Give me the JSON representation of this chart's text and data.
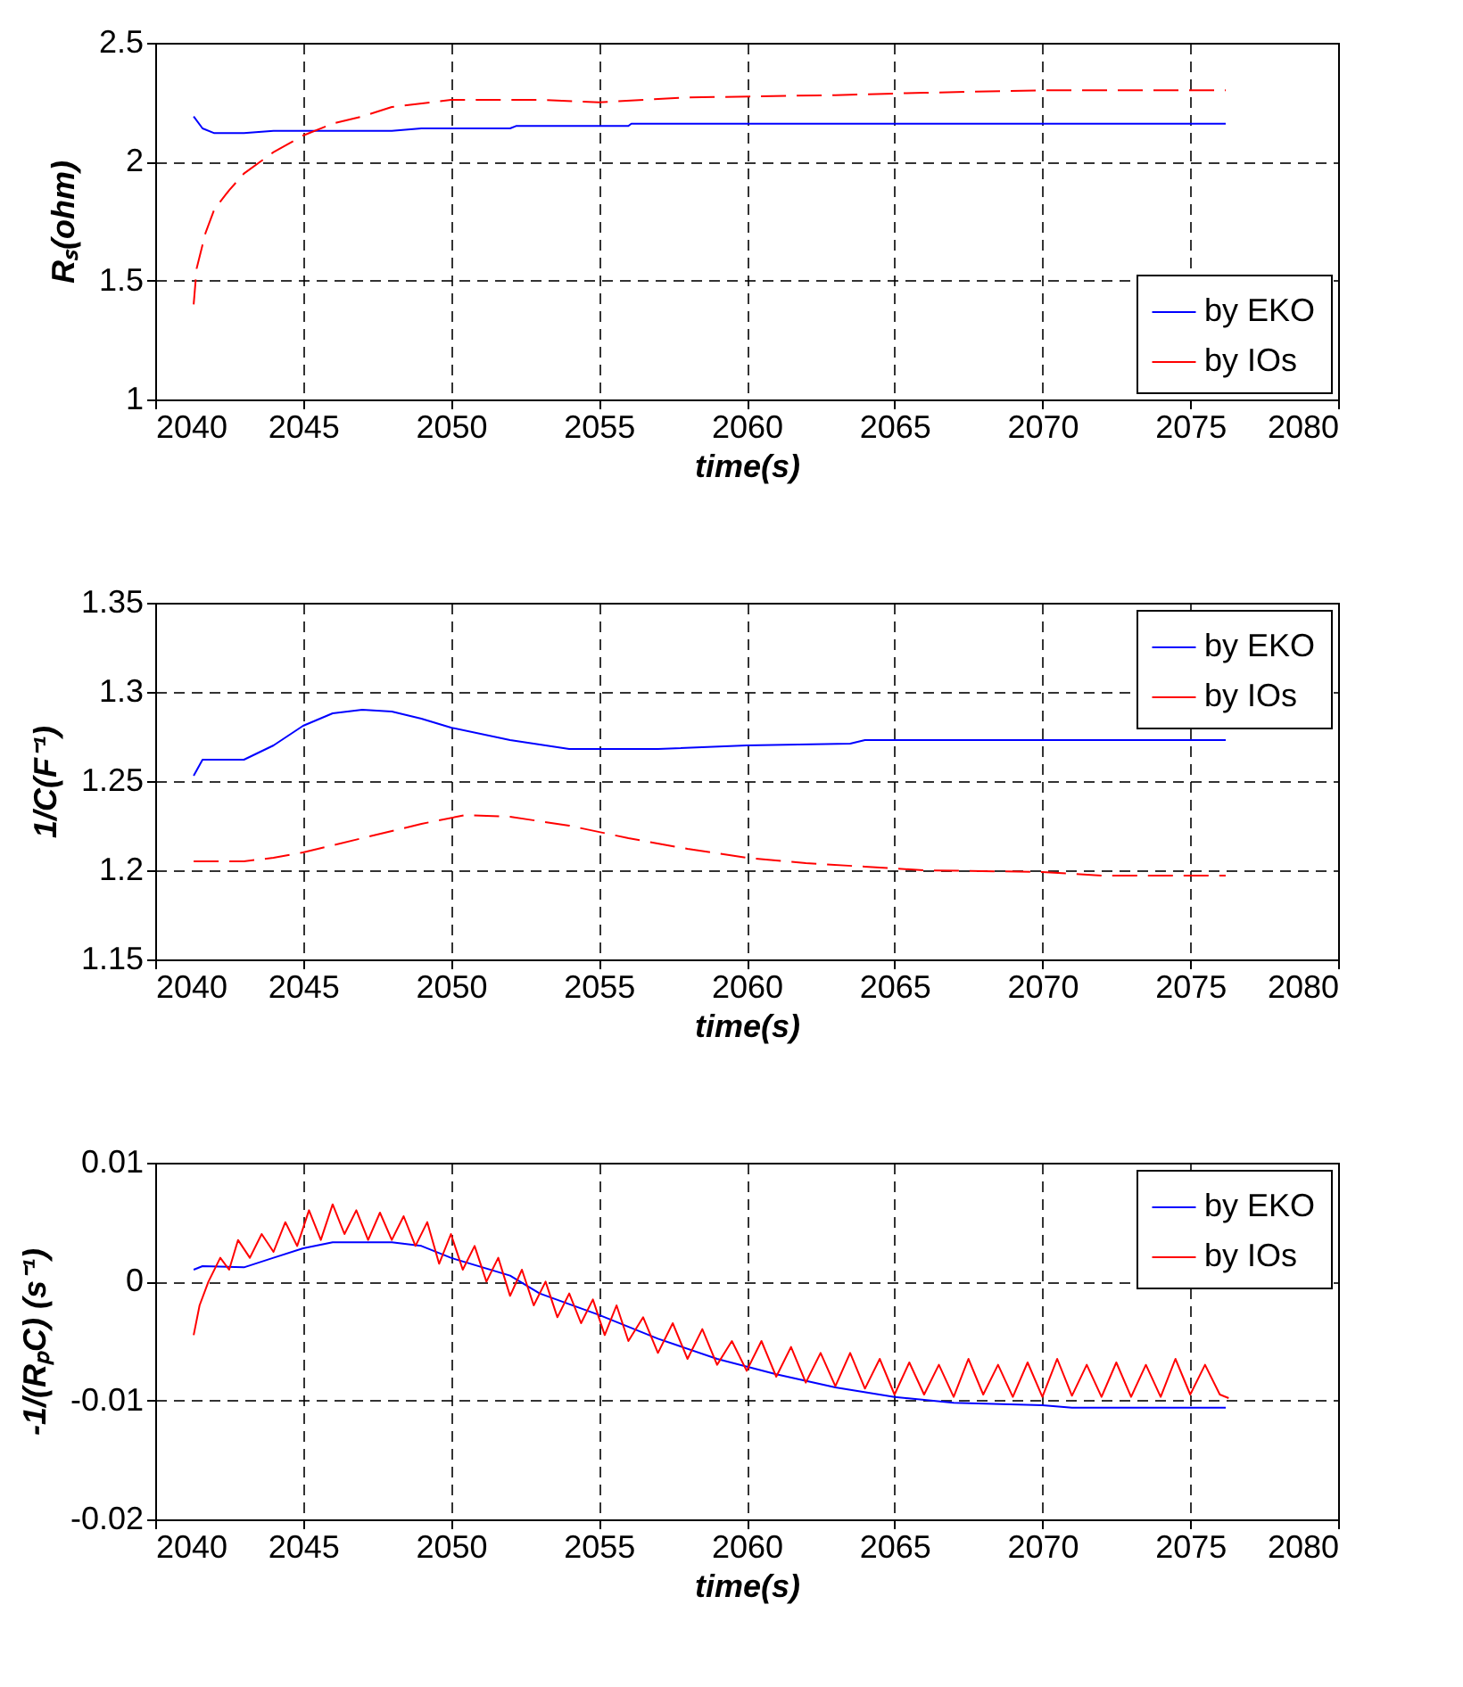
{
  "chart_data": [
    {
      "type": "line",
      "xlabel": "time(s)",
      "ylabel": "Rₛ(ohm)",
      "xlim": [
        2040,
        2080
      ],
      "xticks": [
        2040,
        2045,
        2050,
        2055,
        2060,
        2065,
        2070,
        2075,
        2080
      ],
      "ylim": [
        1,
        2.5
      ],
      "yticks": [
        1,
        1.5,
        2,
        2.5
      ],
      "grid": true,
      "legend": "bottom right",
      "series": [
        {
          "name": "by EKO",
          "color": "#0000ff",
          "line_style": "solid",
          "x": [
            2041.3,
            2041.6,
            2042,
            2043,
            2044,
            2048,
            2049,
            2052,
            2052.2,
            2056,
            2056.1,
            2076.2
          ],
          "values": [
            2.19,
            2.14,
            2.12,
            2.12,
            2.13,
            2.13,
            2.14,
            2.14,
            2.15,
            2.15,
            2.16,
            2.16
          ]
        },
        {
          "name": "by IOs",
          "color": "#ff0000",
          "line_style": "dashed",
          "x": [
            2041.3,
            2041.4,
            2041.7,
            2042,
            2042.5,
            2043,
            2044,
            2045,
            2046,
            2047,
            2048,
            2050,
            2053,
            2055,
            2058,
            2063,
            2066,
            2070,
            2076.2
          ],
          "values": [
            1.4,
            1.55,
            1.7,
            1.8,
            1.88,
            1.95,
            2.04,
            2.11,
            2.16,
            2.19,
            2.23,
            2.26,
            2.26,
            2.25,
            2.27,
            2.28,
            2.29,
            2.3,
            2.3
          ]
        }
      ]
    },
    {
      "type": "line",
      "xlabel": "time(s)",
      "ylabel": "1/C(F⁻¹)",
      "xlim": [
        2040,
        2080
      ],
      "xticks": [
        2040,
        2045,
        2050,
        2055,
        2060,
        2065,
        2070,
        2075,
        2080
      ],
      "ylim": [
        1.15,
        1.35
      ],
      "yticks": [
        1.15,
        1.2,
        1.25,
        1.3,
        1.35
      ],
      "grid": true,
      "legend": "top right",
      "series": [
        {
          "name": "by EKO",
          "color": "#0000ff",
          "line_style": "solid",
          "x": [
            2041.3,
            2041.6,
            2043,
            2044,
            2045,
            2046,
            2047,
            2048,
            2049,
            2050,
            2052,
            2054,
            2057,
            2060,
            2063.5,
            2064,
            2076.2
          ],
          "values": [
            1.253,
            1.262,
            1.262,
            1.27,
            1.281,
            1.288,
            1.29,
            1.289,
            1.285,
            1.28,
            1.273,
            1.268,
            1.268,
            1.27,
            1.271,
            1.273,
            1.273
          ]
        },
        {
          "name": "by IOs",
          "color": "#ff0000",
          "line_style": "dashed",
          "x": [
            2041.3,
            2043,
            2044,
            2045,
            2047,
            2049,
            2050.5,
            2052,
            2054,
            2056,
            2058,
            2060,
            2062,
            2064,
            2066,
            2070,
            2072,
            2076.2
          ],
          "values": [
            1.205,
            1.205,
            1.207,
            1.21,
            1.218,
            1.226,
            1.231,
            1.23,
            1.225,
            1.218,
            1.212,
            1.207,
            1.204,
            1.202,
            1.2,
            1.199,
            1.197,
            1.197
          ]
        }
      ]
    },
    {
      "type": "line",
      "xlabel": "time(s)",
      "ylabel": "-1/(RₚC) (s⁻¹)",
      "xlim": [
        2040,
        2080
      ],
      "xticks": [
        2040,
        2045,
        2050,
        2055,
        2060,
        2065,
        2070,
        2075,
        2080
      ],
      "ylim": [
        -0.02,
        0.01
      ],
      "yticks": [
        -0.02,
        -0.01,
        0,
        0.01
      ],
      "grid": true,
      "legend": "top right",
      "series": [
        {
          "name": "by EKO",
          "color": "#0000ff",
          "line_style": "solid",
          "x": [
            2041.3,
            2041.6,
            2043,
            2044,
            2045,
            2046,
            2048,
            2049,
            2050,
            2052,
            2053,
            2055,
            2057,
            2059,
            2061,
            2063,
            2065,
            2067,
            2070,
            2071,
            2076.2
          ],
          "values": [
            0.001,
            0.0013,
            0.0012,
            0.002,
            0.0028,
            0.0033,
            0.0033,
            0.003,
            0.002,
            0.0005,
            -0.001,
            -0.0028,
            -0.0048,
            -0.0065,
            -0.0078,
            -0.0089,
            -0.0097,
            -0.0102,
            -0.0104,
            -0.0106,
            -0.0106
          ]
        },
        {
          "name": "by IOs",
          "color": "#ff0000",
          "line_style": "solid",
          "x": [
            2041.3,
            2041.5,
            2041.8,
            2042.2,
            2042.5,
            2042.8,
            2043.2,
            2043.6,
            2044,
            2044.4,
            2044.8,
            2045.2,
            2045.6,
            2046,
            2046.4,
            2046.8,
            2047.2,
            2047.6,
            2048,
            2048.4,
            2048.8,
            2049.2,
            2049.6,
            2050,
            2050.4,
            2050.8,
            2051.2,
            2051.6,
            2052,
            2052.4,
            2052.8,
            2053.2,
            2053.6,
            2054,
            2054.4,
            2054.8,
            2055.2,
            2055.6,
            2056,
            2056.5,
            2057,
            2057.5,
            2058,
            2058.5,
            2059,
            2059.5,
            2060,
            2060.5,
            2061,
            2061.5,
            2062,
            2062.5,
            2063,
            2063.5,
            2064,
            2064.5,
            2065,
            2065.5,
            2066,
            2066.5,
            2067,
            2067.5,
            2068,
            2068.5,
            2069,
            2069.5,
            2070,
            2070.5,
            2071,
            2071.5,
            2072,
            2072.5,
            2073,
            2073.5,
            2074,
            2074.5,
            2075,
            2075.5,
            2076,
            2076.3
          ],
          "values": [
            -0.0045,
            -0.002,
            0,
            0.002,
            0.001,
            0.0035,
            0.002,
            0.004,
            0.0025,
            0.005,
            0.003,
            0.006,
            0.0035,
            0.0065,
            0.004,
            0.006,
            0.0035,
            0.0058,
            0.0035,
            0.0055,
            0.003,
            0.005,
            0.0015,
            0.004,
            0.001,
            0.003,
            0,
            0.002,
            -0.0012,
            0.001,
            -0.002,
            0,
            -0.003,
            -0.001,
            -0.0035,
            -0.0015,
            -0.0045,
            -0.002,
            -0.005,
            -0.003,
            -0.006,
            -0.0035,
            -0.0065,
            -0.004,
            -0.007,
            -0.005,
            -0.0075,
            -0.005,
            -0.008,
            -0.0055,
            -0.0085,
            -0.006,
            -0.0088,
            -0.006,
            -0.009,
            -0.0065,
            -0.0095,
            -0.0068,
            -0.0095,
            -0.007,
            -0.0097,
            -0.0065,
            -0.0095,
            -0.007,
            -0.0097,
            -0.0068,
            -0.0097,
            -0.0065,
            -0.0096,
            -0.007,
            -0.0097,
            -0.0068,
            -0.0097,
            -0.007,
            -0.0097,
            -0.0065,
            -0.0095,
            -0.007,
            -0.0095,
            -0.0098
          ]
        }
      ]
    }
  ]
}
